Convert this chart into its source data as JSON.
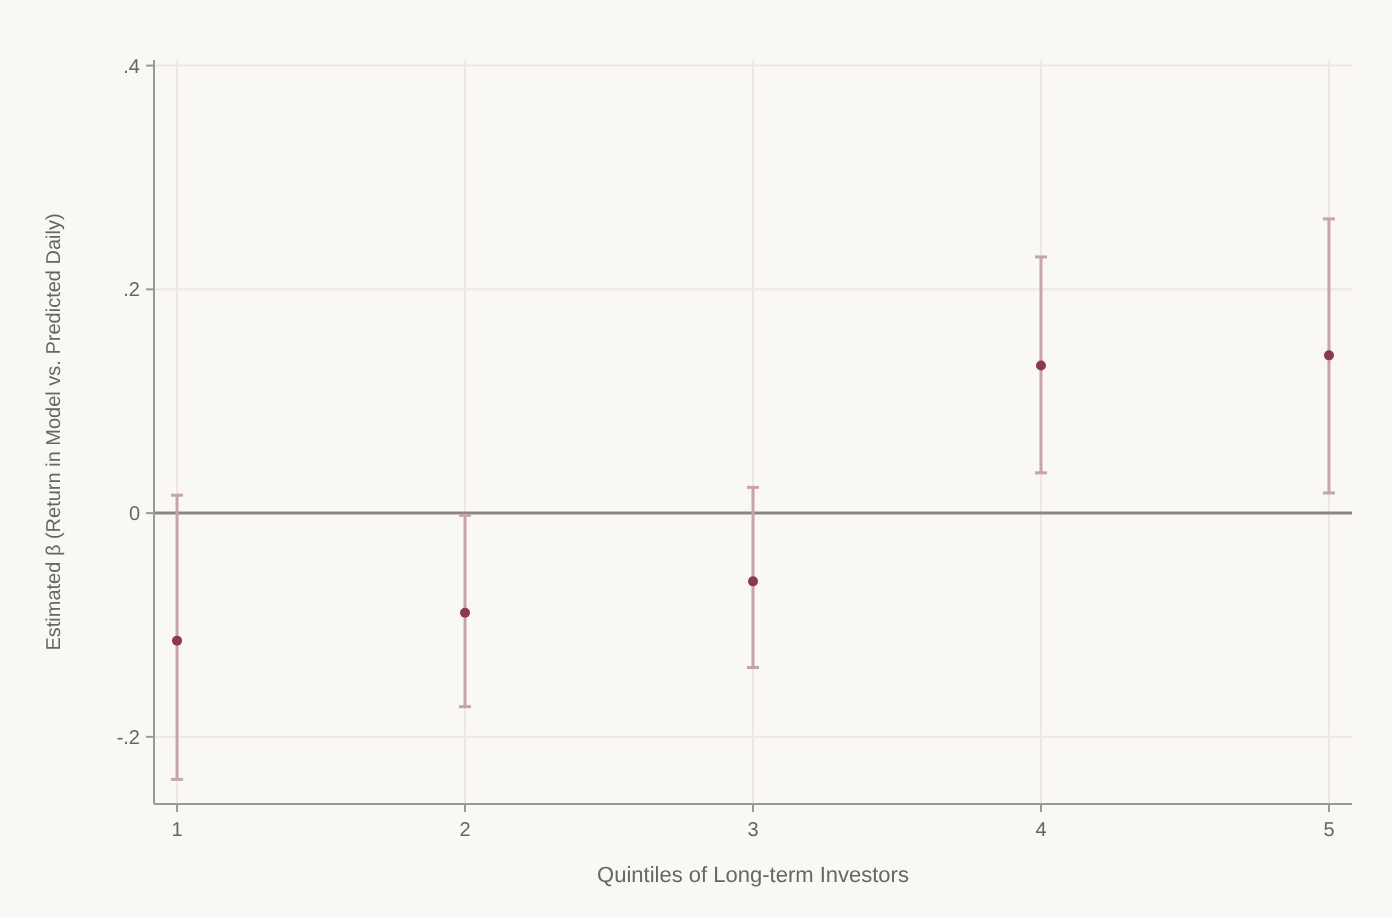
{
  "chart_data": {
    "type": "scatter",
    "xlabel": "Quintiles of Long-term Investors",
    "ylabel": "Estimated β (Return in Model vs. Predicted Daily)",
    "x": [
      1,
      2,
      3,
      4,
      5
    ],
    "series": [
      {
        "color": "#8b3a4a",
        "values": [
          -0.114,
          -0.089,
          -0.061,
          0.132,
          0.141
        ],
        "errors": [
          [
            -0.238,
            0.016
          ],
          [
            -0.173,
            -0.002
          ],
          [
            -0.138,
            0.023
          ],
          [
            0.036,
            0.229
          ],
          [
            0.018,
            0.263
          ]
        ]
      }
    ],
    "xlim": [
      0.92,
      5.08
    ],
    "xticks": [
      1,
      2,
      3,
      4,
      5
    ],
    "ylim": [
      -0.26,
      0.405
    ],
    "yticks": [
      {
        "value": -0.2,
        "label": "-.2"
      },
      0,
      {
        "value": 0.2,
        "label": ".2"
      },
      {
        "value": 0.4,
        "label": ".4"
      }
    ],
    "ref_lines": [
      {
        "axis": "y",
        "value": 0,
        "color": "#8c8585"
      }
    ],
    "grid": true,
    "marker": "circle"
  }
}
